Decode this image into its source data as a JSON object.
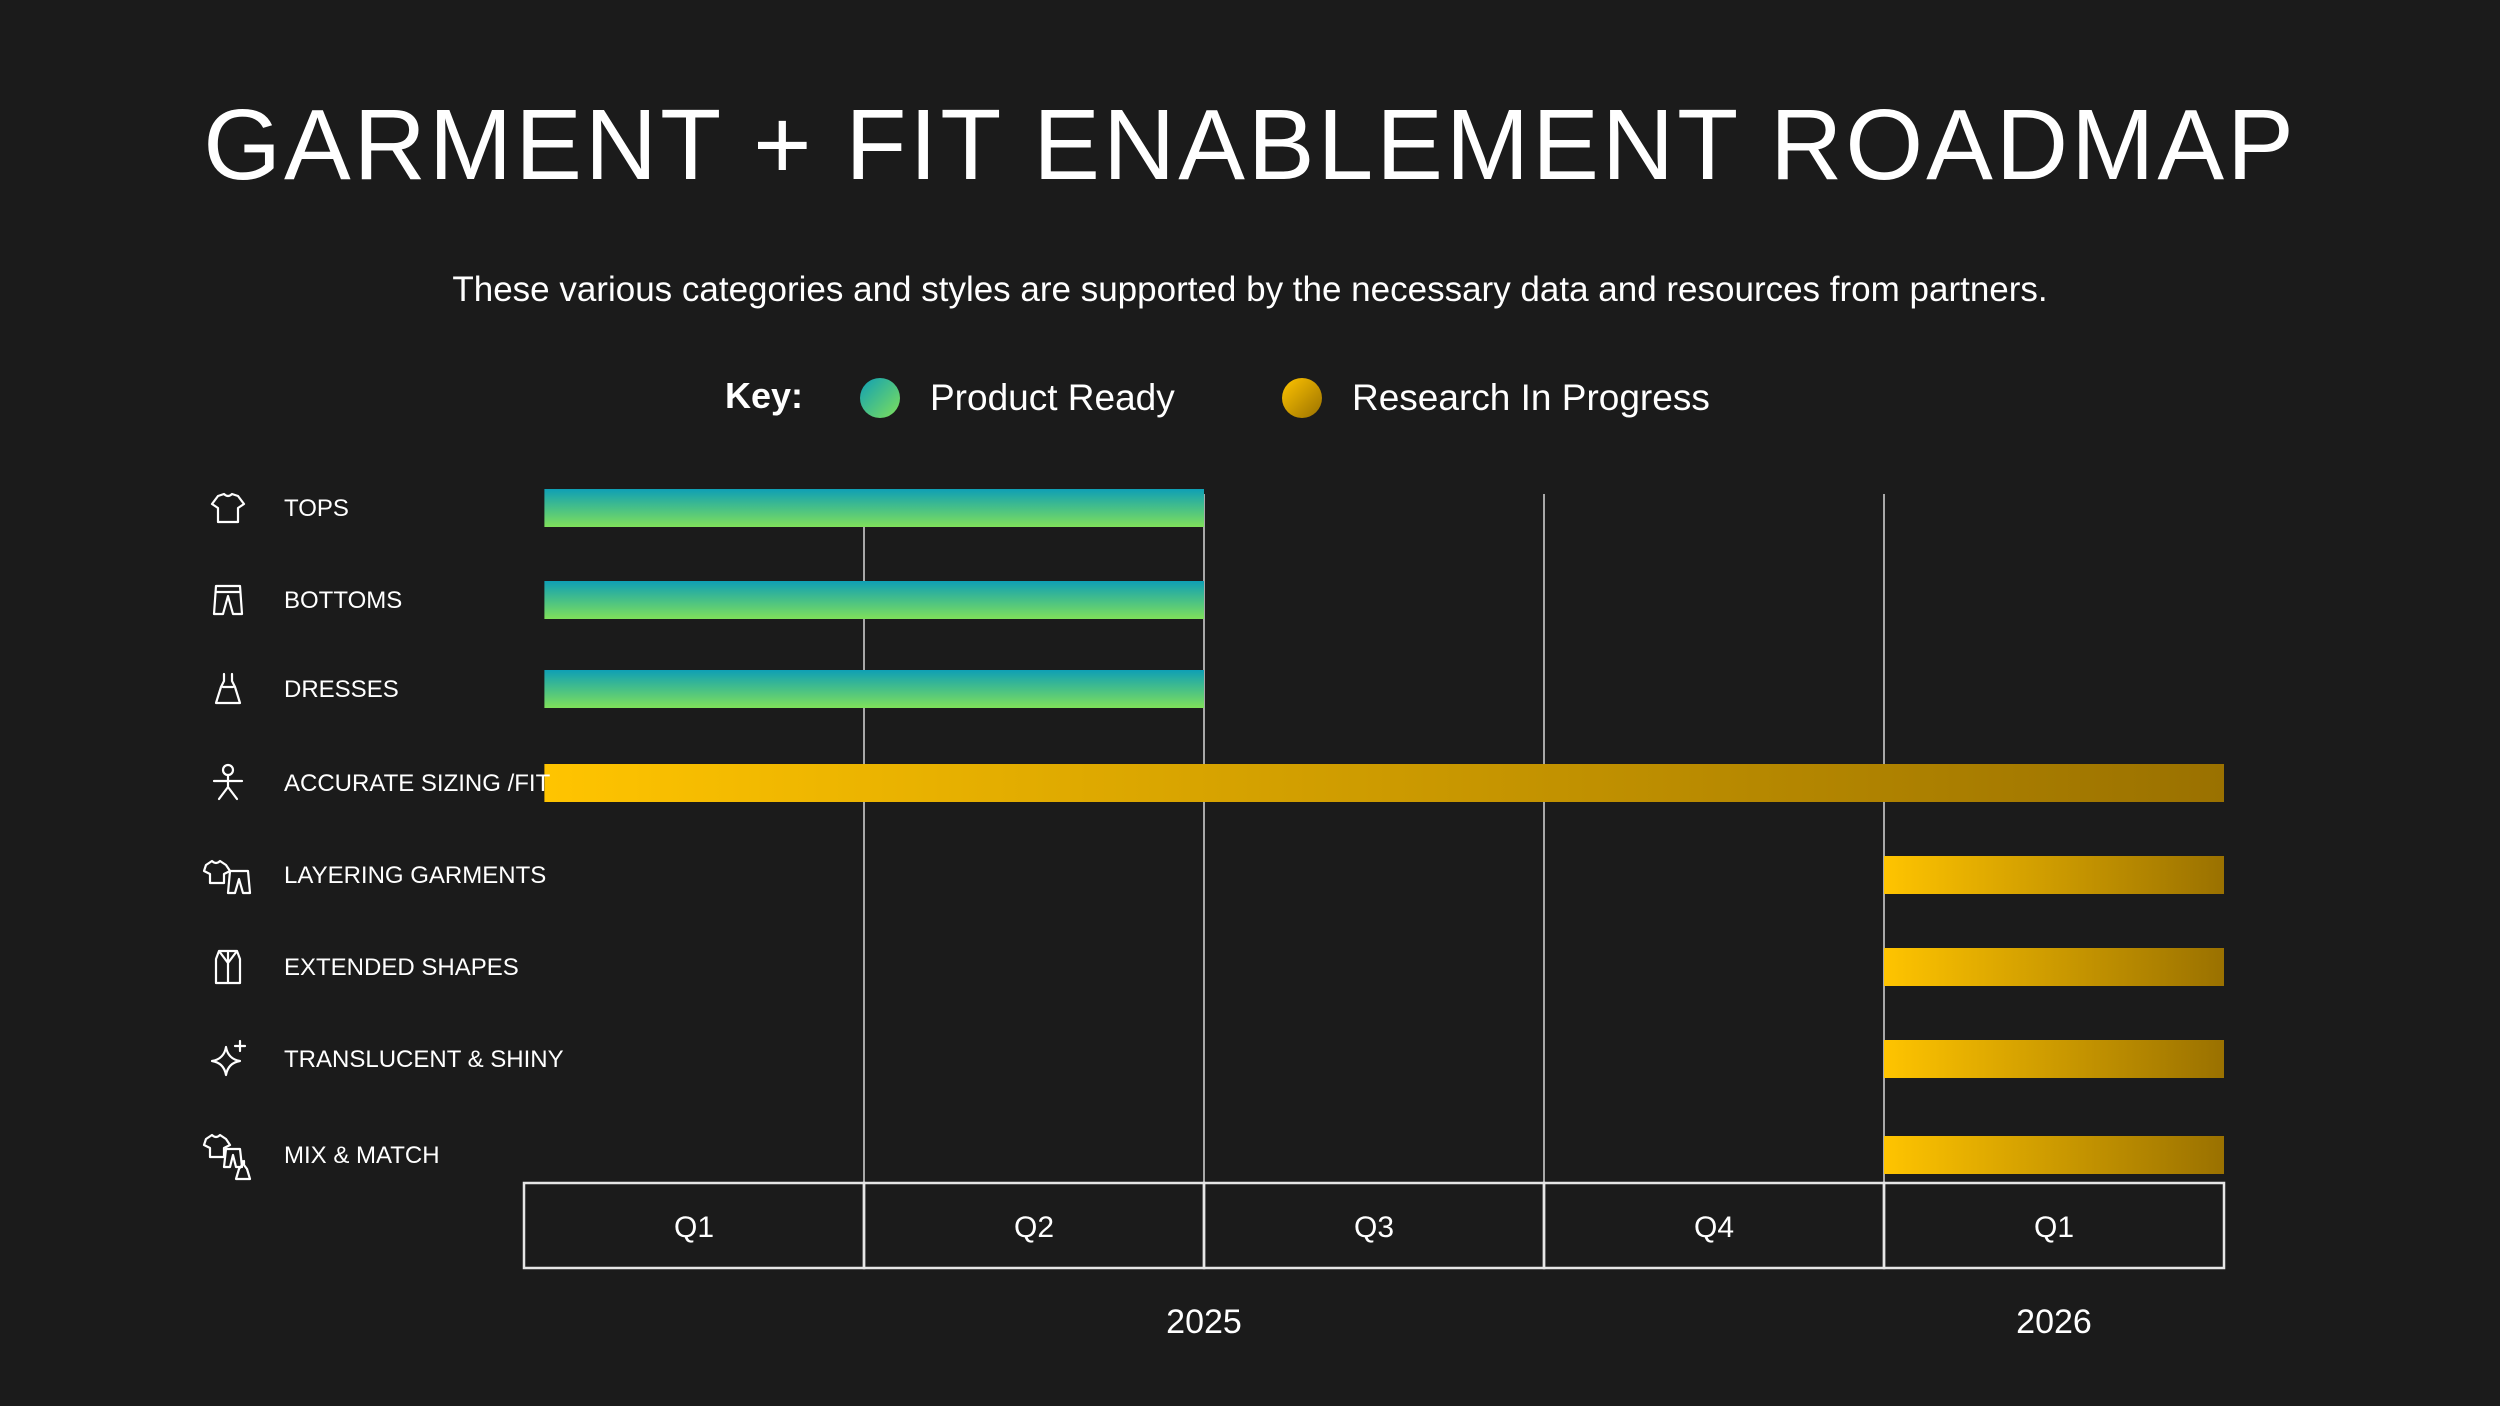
{
  "title": "GARMENT + FIT ENABLEMENT ROADMAP",
  "subtitle": "These various categories and styles are supported by the necessary data and resources from partners.",
  "key": {
    "label": "Key:",
    "items": [
      {
        "label": "Product Ready",
        "status": "ready",
        "color_from": "#0f9fb5",
        "color_to": "#7fe05a"
      },
      {
        "label": "Research In Progress",
        "status": "research",
        "color_from": "#ffc400",
        "color_to": "#9a7100"
      }
    ]
  },
  "chart_data": {
    "type": "bar",
    "orientation": "horizontal-timeline",
    "quarters": [
      "Q1",
      "Q2",
      "Q3",
      "Q4",
      "Q1"
    ],
    "years": [
      {
        "label": "2025",
        "quarter_index": 2
      },
      {
        "label": "2026",
        "quarter_index": 4
      }
    ],
    "tasks": [
      {
        "label": "TOPS",
        "icon": "shirt-icon",
        "status": "ready",
        "start": 0.06,
        "end": 2.0
      },
      {
        "label": "BOTTOMS",
        "icon": "pants-icon",
        "status": "ready",
        "start": 0.06,
        "end": 2.0
      },
      {
        "label": "DRESSES",
        "icon": "dress-icon",
        "status": "ready",
        "start": 0.06,
        "end": 2.0
      },
      {
        "label": "ACCURATE SIZING /FIT",
        "icon": "person-fit-icon",
        "status": "research",
        "start": 0.06,
        "end": 5.0
      },
      {
        "label": "LAYERING GARMENTS",
        "icon": "layering-icon",
        "status": "research",
        "start": 4.0,
        "end": 5.0
      },
      {
        "label": "EXTENDED SHAPES",
        "icon": "coat-icon",
        "status": "research",
        "start": 4.0,
        "end": 5.0
      },
      {
        "label": "TRANSLUCENT & SHINY",
        "icon": "sparkle-icon",
        "status": "research",
        "start": 4.0,
        "end": 5.0
      },
      {
        "label": "MIX & MATCH",
        "icon": "mix-match-icon",
        "status": "research",
        "start": 4.0,
        "end": 5.0
      }
    ]
  }
}
